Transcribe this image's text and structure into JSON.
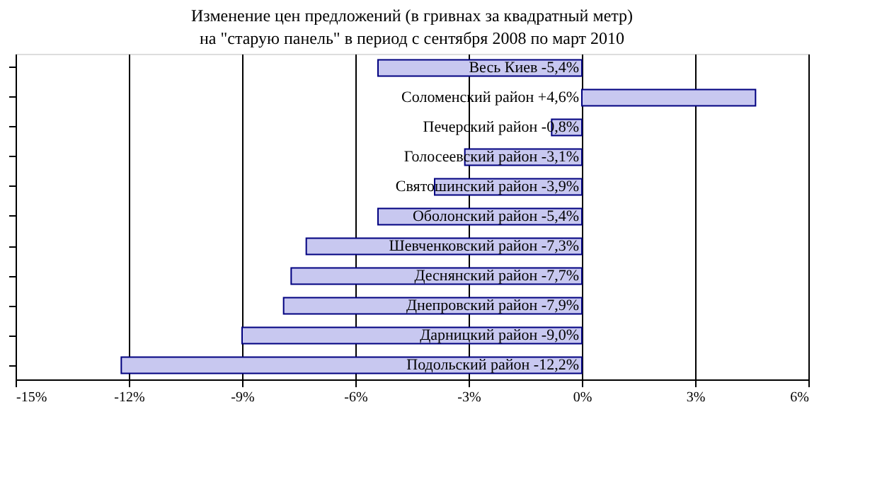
{
  "chart_data": {
    "type": "bar",
    "orientation": "horizontal",
    "title": "Изменение цен предложений (в гривнах за квадратный метр)",
    "subtitle": "на \"старую панель\" в период с сентября 2008 по март 2010",
    "categories": [
      "Весь Киев -5,4%",
      "Соломенский район +4,6%",
      "Печерский район -0,8%",
      "Голосеевский район -3,1%",
      "Святошинский район -3,9%",
      "Оболонский район -5,4%",
      "Шевченковский район -7,3%",
      "Деснянский район -7,7%",
      "Днепровский район -7,9%",
      "Дарницкий район -9,0%",
      "Подольский район -12,2%"
    ],
    "values": [
      -5.4,
      4.6,
      -0.8,
      -3.1,
      -3.9,
      -5.4,
      -7.3,
      -7.7,
      -7.9,
      -9.0,
      -12.2
    ],
    "color": "#c8c8f0",
    "xlim": [
      -15,
      6
    ],
    "xticks": [
      {
        "value": -15,
        "label": "-15%"
      },
      {
        "value": -12,
        "label": "-12%"
      },
      {
        "value": -9,
        "label": "-9%"
      },
      {
        "value": -6,
        "label": "-6%"
      },
      {
        "value": -3,
        "label": "-3%"
      },
      {
        "value": 0,
        "label": "0%"
      },
      {
        "value": 3,
        "label": "3%"
      },
      {
        "value": 6,
        "label": "6%"
      }
    ],
    "grid": "x",
    "tick_labels": "x"
  }
}
